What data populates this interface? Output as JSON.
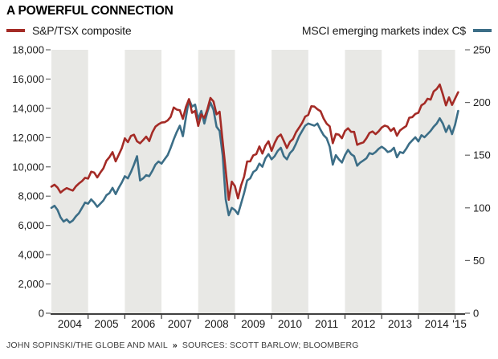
{
  "title": "A POWERFUL CONNECTION",
  "legend": {
    "left": {
      "label": "S&P/TSX composite"
    },
    "right": {
      "label": "MSCI emerging markets index C$"
    }
  },
  "footer": {
    "credit": "JOHN SOPINSKI/THE GLOBE AND MAIL",
    "separator": "»",
    "sources": "SOURCES: SCOTT BARLOW; BLOOMBERG"
  },
  "chart_data": {
    "type": "line",
    "title": "A POWERFUL CONNECTION",
    "x_start_year": 2004,
    "x_step_years": 0.0833333,
    "x_end_year": 2015.25,
    "x_tick_labels": [
      "2004",
      "2005",
      "2006",
      "2007",
      "2008",
      "2009",
      "2010",
      "2011",
      "2012",
      "2013",
      "2014",
      "'15"
    ],
    "left_axis": {
      "min": 0,
      "max": 18000,
      "step": 2000,
      "tick_labels": [
        "18,000",
        "16,000",
        "14,000",
        "12,000",
        "10,000",
        "8,000",
        "6,000",
        "4,000",
        "2,000",
        "0"
      ]
    },
    "right_axis": {
      "min": 0,
      "max": 250,
      "step": 50,
      "tick_labels": [
        "250",
        "200",
        "150",
        "100",
        "50",
        "0"
      ]
    },
    "band_years": [
      2004,
      2006,
      2008,
      2010,
      2012,
      2014
    ],
    "band_color": "#e8e8e5",
    "grid": "none",
    "legend_position": "top",
    "series": [
      {
        "name": "MSCI emerging markets index C$",
        "axis": "right",
        "color": "#3c6e87",
        "values": [
          100,
          102,
          98,
          91,
          87,
          89,
          86,
          88,
          92,
          95,
          100,
          105,
          104,
          108,
          105,
          101,
          104,
          107,
          112,
          114,
          119,
          113,
          119,
          124,
          130,
          128,
          134,
          141,
          149,
          126,
          128,
          131,
          130,
          135,
          141,
          144,
          142,
          146,
          150,
          157,
          165,
          172,
          178,
          168,
          186,
          203,
          196,
          198,
          184,
          192,
          180,
          191,
          200,
          193,
          177,
          173,
          150,
          108,
          93,
          100,
          98,
          94,
          104,
          114,
          126,
          128,
          134,
          136,
          142,
          139,
          147,
          151,
          146,
          149,
          154,
          157,
          149,
          146,
          152,
          155,
          161,
          168,
          173,
          178,
          180,
          179,
          178,
          180,
          174,
          169,
          166,
          158,
          141,
          150,
          146,
          143,
          150,
          155,
          151,
          149,
          140,
          143,
          145,
          147,
          152,
          151,
          153,
          156,
          158,
          156,
          153,
          154,
          157,
          148,
          153,
          152,
          156,
          161,
          164,
          167,
          163,
          169,
          167,
          170,
          173,
          177,
          180,
          185,
          180,
          172,
          178,
          170,
          179,
          192
        ]
      },
      {
        "name": "S&P/TSX composite",
        "axis": "left",
        "color": "#a42b26",
        "values": [
          8650,
          8780,
          8590,
          8240,
          8420,
          8550,
          8460,
          8380,
          8670,
          8870,
          9030,
          9250,
          9200,
          9670,
          9610,
          9280,
          9610,
          9900,
          10420,
          10670,
          11010,
          10380,
          10820,
          11270,
          11950,
          11690,
          12110,
          12200,
          11750,
          11610,
          11830,
          12070,
          11760,
          12350,
          12750,
          12910,
          13030,
          13050,
          13170,
          13420,
          14060,
          13910,
          13870,
          13280,
          14100,
          14630,
          13690,
          13830,
          12800,
          13580,
          13350,
          13940,
          14710,
          14470,
          13590,
          13770,
          11750,
          9760,
          7750,
          8990,
          8690,
          7850,
          8720,
          9330,
          10370,
          10380,
          10790,
          10870,
          11400,
          10910,
          11450,
          11750,
          11090,
          11630,
          12040,
          12210,
          11760,
          11290,
          11710,
          11910,
          12370,
          12680,
          13010,
          13440,
          13550,
          14140,
          14120,
          13940,
          13800,
          13300,
          12950,
          12770,
          11620,
          12250,
          12200,
          11960,
          12450,
          12640,
          12390,
          12390,
          11510,
          11600,
          11670,
          11950,
          12320,
          12420,
          12240,
          12430,
          12690,
          12820,
          12750,
          12460,
          12650,
          12130,
          12490,
          12650,
          12790,
          13360,
          13400,
          13620,
          13700,
          14210,
          14340,
          14650,
          14600,
          15150,
          15330,
          15630,
          14960,
          14200,
          14750,
          14230,
          14670,
          15100
        ]
      }
    ]
  }
}
